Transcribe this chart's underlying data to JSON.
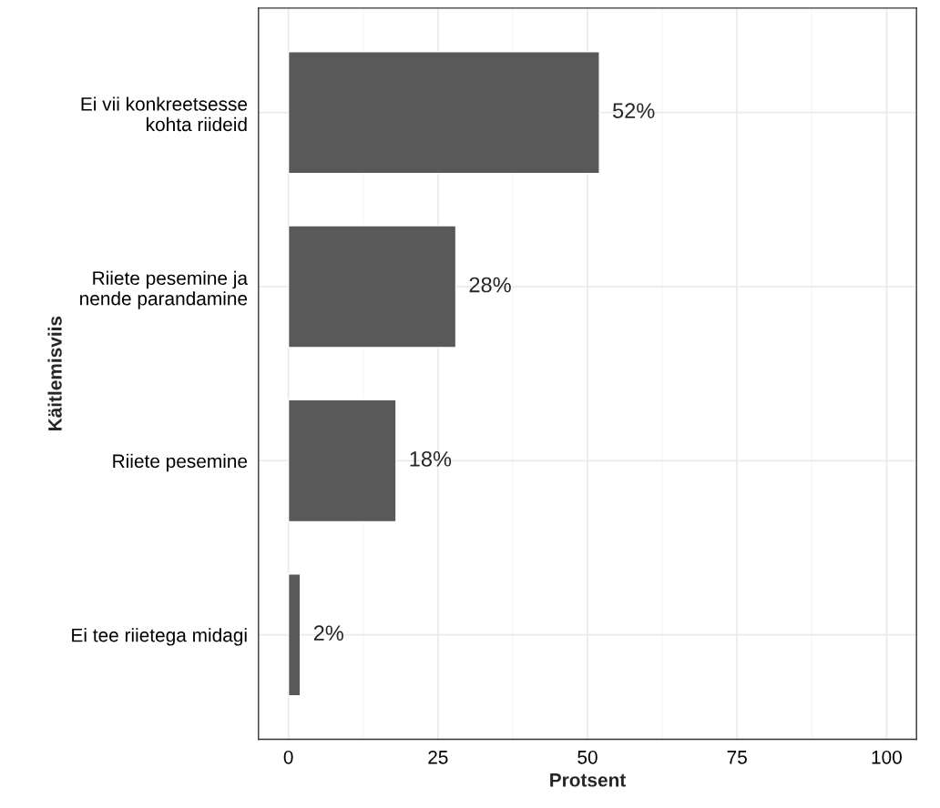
{
  "chart_data": {
    "type": "bar",
    "orientation": "horizontal",
    "xlabel": "Protsent",
    "ylabel": "Käitlemisviis",
    "categories": [
      "Ei vii konkreetsesse\nkohta riideid",
      "Riiete pesemine ja\nnende parandamine",
      "Riiete pesemine",
      "Ei tee riietega midagi"
    ],
    "values": [
      52,
      28,
      18,
      2
    ],
    "value_labels": [
      "52%",
      "28%",
      "18%",
      "2%"
    ],
    "color": "#595959",
    "xlim": [
      -5,
      105
    ],
    "xticks": [
      0,
      25,
      50,
      75,
      100
    ],
    "grid": true
  }
}
